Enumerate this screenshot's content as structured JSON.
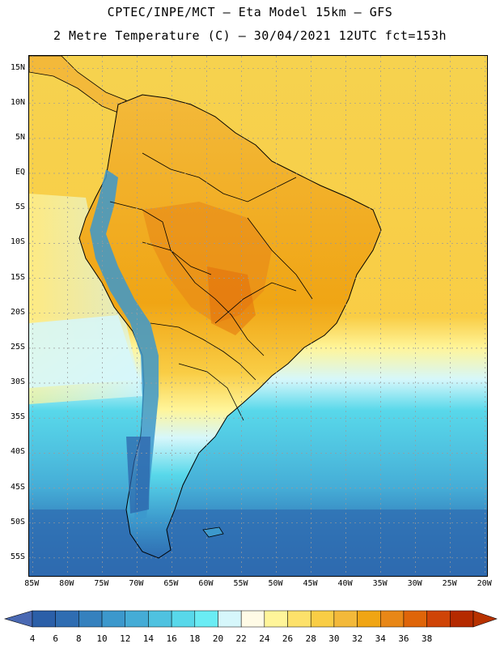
{
  "header": {
    "title_line1": "CPTEC/INPE/MCT –  Eta Model 15km – GFS",
    "title_line2": "2 Metre Temperature (C) – 30/04/2021 12UTC fct=153h"
  },
  "map": {
    "lat_labels": [
      "15N",
      "10N",
      "5N",
      "EQ",
      "5S",
      "10S",
      "15S",
      "20S",
      "25S",
      "30S",
      "35S",
      "40S",
      "45S",
      "50S",
      "55S"
    ],
    "lon_labels": [
      "85W",
      "80W",
      "75W",
      "70W",
      "65W",
      "60W",
      "55W",
      "50W",
      "45W",
      "40W",
      "35W",
      "30W",
      "25W",
      "20W"
    ],
    "lat_values": [
      15,
      10,
      5,
      0,
      -5,
      -10,
      -15,
      -20,
      -25,
      -30,
      -35,
      -40,
      -45,
      -50,
      -55
    ],
    "lon_values": [
      -85,
      -80,
      -75,
      -70,
      -65,
      -60,
      -55,
      -50,
      -45,
      -40,
      -35,
      -30,
      -25,
      -20
    ],
    "extent_deg": {
      "lon_min": -85.5,
      "lon_max": -19.5,
      "lat_min": -57.8,
      "lat_max": 16.8
    }
  },
  "colorbar": {
    "labels": [
      "4",
      "6",
      "8",
      "10",
      "12",
      "14",
      "16",
      "18",
      "20",
      "22",
      "24",
      "26",
      "28",
      "30",
      "32",
      "34",
      "36",
      "38"
    ],
    "colors": [
      "#2b5fa8",
      "#2f6db2",
      "#3581be",
      "#3c98cc",
      "#45acd6",
      "#4fc2e0",
      "#58d8ea",
      "#6aecf4",
      "#d6f7fb",
      "#fffbe6",
      "#fff59a",
      "#fde16a",
      "#f9cd45",
      "#f3b93a",
      "#f0a514",
      "#e88717",
      "#df6509",
      "#cf4407",
      "#b52a00"
    ],
    "min_arrow_color": "#4a69b3",
    "max_arrow_color": "#b83200"
  },
  "palette": {
    "ocean_cold": "#2b5fa8",
    "ocean_mid": "#45acd6",
    "ocean_cyan": "#58d8ea",
    "ocean_light": "#d6f7fb",
    "ocean_warm": "#f9cd45",
    "land_warm": "#f3b93a",
    "land_hot": "#e88717",
    "land_andes": "#3c98cc",
    "grid_color": "#9a9a9a",
    "border_color": "#000000"
  }
}
